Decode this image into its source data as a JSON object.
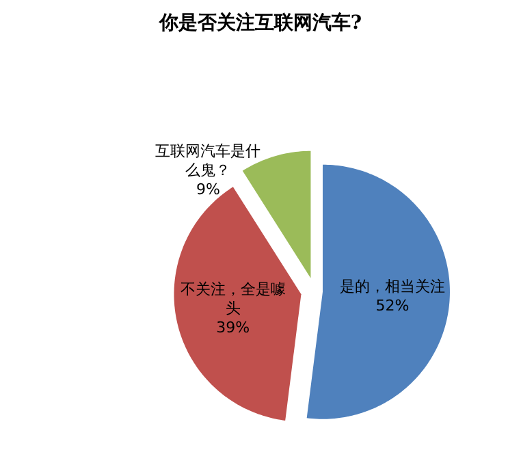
{
  "chart_data": {
    "type": "pie",
    "title": "你是否关注互联网汽车?",
    "categories": [
      "是的，相当关注",
      "不关注，全是噱头",
      "互联网汽车是什么鬼？"
    ],
    "values": [
      52,
      39,
      9
    ],
    "colors": [
      "#4f81bd",
      "#c0504d",
      "#9bbb59"
    ],
    "value_labels": [
      "52%",
      "39%",
      "9%"
    ]
  }
}
